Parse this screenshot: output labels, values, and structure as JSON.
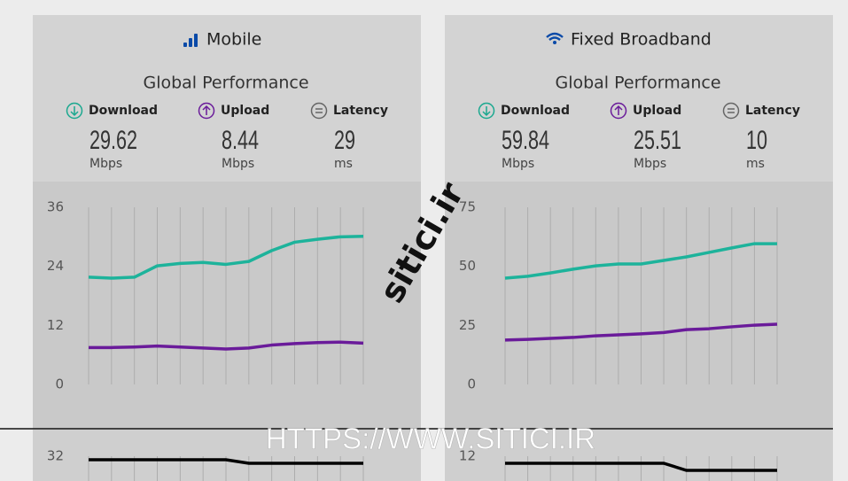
{
  "panels": [
    {
      "title": "Mobile",
      "subtitle": "Global Performance",
      "metrics": [
        {
          "label": "Download",
          "value": 29.62,
          "unit": "Mbps"
        },
        {
          "label": "Upload",
          "value": 8.44,
          "unit": "Mbps"
        },
        {
          "label": "Latency",
          "value": 29,
          "unit": "ms"
        }
      ],
      "chart": {
        "type": "line",
        "ylim": [
          0,
          36
        ],
        "yticks": [
          0,
          12,
          24,
          36
        ],
        "grid": true,
        "series": [
          {
            "color": "#1db39b",
            "values": [
              21.8,
              21.6,
              21.8,
              24.1,
              24.6,
              24.8,
              24.4,
              25.0,
              27.2,
              28.9,
              29.5,
              30.0,
              30.1
            ]
          },
          {
            "color": "#6a1b9a",
            "values": [
              7.5,
              7.5,
              7.6,
              7.8,
              7.6,
              7.4,
              7.2,
              7.4,
              8.0,
              8.3,
              8.5,
              8.6,
              8.4
            ]
          }
        ]
      },
      "latency_chart": {
        "type": "line",
        "ylim": [
          20,
          35
        ],
        "yticks": [
          32
        ],
        "color": "#000000",
        "values": [
          31,
          31,
          31,
          31,
          31,
          31,
          31,
          30,
          30,
          30,
          30,
          30,
          30
        ]
      }
    },
    {
      "title": "Fixed Broadband",
      "subtitle": "Global Performance",
      "metrics": [
        {
          "label": "Download",
          "value": 59.84,
          "unit": "Mbps"
        },
        {
          "label": "Upload",
          "value": 25.51,
          "unit": "Mbps"
        },
        {
          "label": "Latency",
          "value": 10,
          "unit": "ms"
        }
      ],
      "chart": {
        "type": "line",
        "ylim": [
          0,
          75
        ],
        "yticks": [
          0,
          25,
          50,
          75
        ],
        "grid": true,
        "series": [
          {
            "color": "#1db39b",
            "values": [
              45.0,
              45.8,
              47.2,
              48.8,
              50.2,
              51.0,
              51.0,
              52.5,
              54.0,
              55.9,
              57.8,
              59.6,
              59.6
            ]
          },
          {
            "color": "#6a1b9a",
            "values": [
              18.8,
              19.1,
              19.5,
              19.9,
              20.6,
              21.0,
              21.4,
              22.0,
              23.2,
              23.6,
              24.4,
              25.1,
              25.5
            ]
          }
        ]
      },
      "latency_chart": {
        "type": "line",
        "ylim": [
          0,
          15
        ],
        "yticks": [
          12
        ],
        "color": "#000000",
        "values": [
          10,
          10,
          10,
          10,
          10,
          10,
          10,
          10,
          8,
          8,
          8,
          8,
          8
        ]
      }
    }
  ],
  "watermarks": [
    "sitici.ir",
    "HTTPS://WWW.SITICI.IR"
  ]
}
